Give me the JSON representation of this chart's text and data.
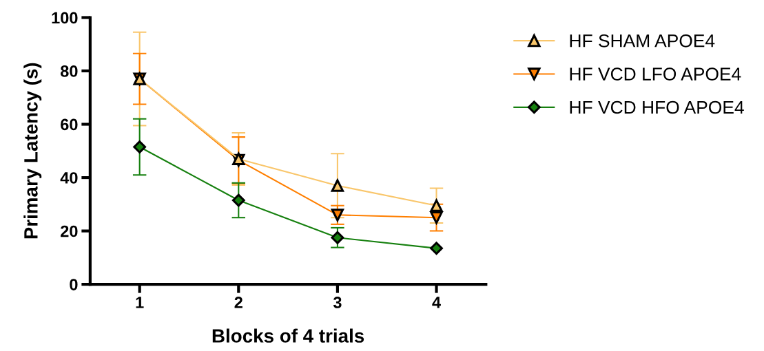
{
  "chart_data": {
    "type": "line",
    "xlabel": "Blocks of 4 trials",
    "ylabel": "Primary Latency (s)",
    "x": [
      1,
      2,
      3,
      4
    ],
    "xlim": [
      0.5,
      4.5
    ],
    "xticks": [
      1,
      2,
      3,
      4
    ],
    "ylim": [
      0,
      100
    ],
    "yticks": [
      0,
      20,
      40,
      60,
      80,
      100
    ],
    "grid": false,
    "legend": "right",
    "series": [
      {
        "name": "HF SHAM APOE4",
        "color": "#f9c66b",
        "marker": "triangle",
        "values": [
          77,
          47,
          37,
          29.5
        ],
        "errors": [
          17.5,
          9.8,
          12,
          6.5
        ]
      },
      {
        "name": "HF VCD LFO APOE4",
        "color": "#ff7f00",
        "marker": "triangle_down",
        "values": [
          77,
          46.5,
          26,
          25
        ],
        "errors": [
          9.5,
          8.7,
          3.5,
          5
        ]
      },
      {
        "name": "HF VCD HFO APOE4",
        "color": "#16800f",
        "marker": "diamond",
        "values": [
          51.5,
          31.5,
          17.5,
          13.5
        ],
        "errors": [
          10.5,
          6.5,
          3.7,
          null
        ]
      }
    ]
  }
}
